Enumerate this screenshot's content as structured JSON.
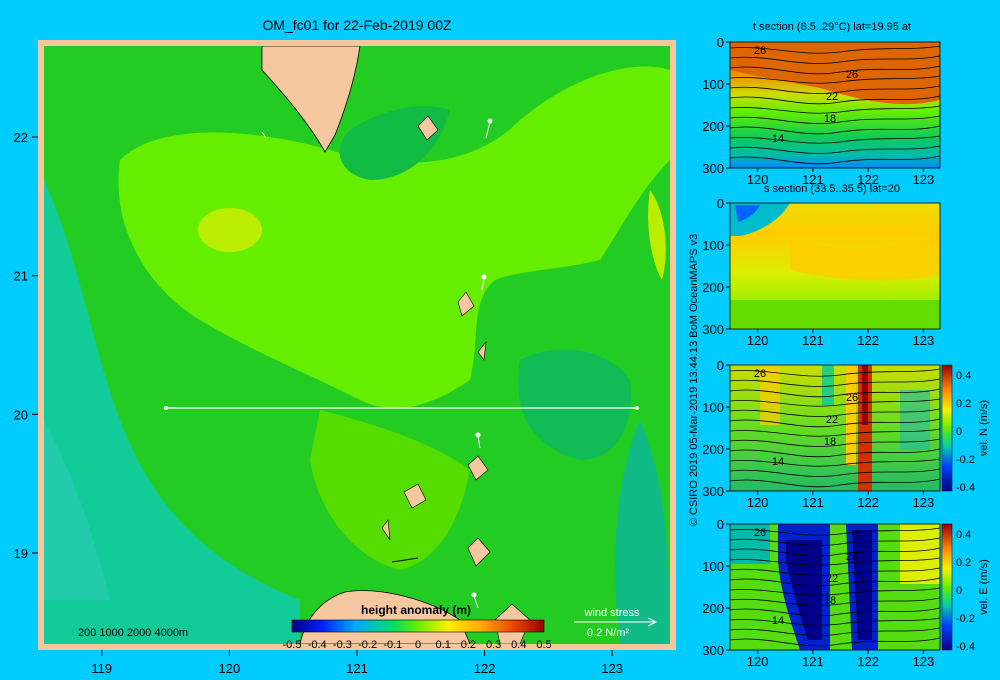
{
  "colors": {
    "background": "#00ccff",
    "frame": "#f5c79a",
    "land": "#f7c7a0",
    "green_light": "#66ee00",
    "green_mid": "#22cc22",
    "green_dark": "#11bb55",
    "teal": "#11cc99",
    "yellow_green": "#bbee00"
  },
  "chart_data": [
    {
      "type": "heatmap",
      "title": "OM_fc01 for 22-Feb-2019 00Z",
      "x_ticks": [
        "119",
        "120",
        "121",
        "122",
        "123"
      ],
      "y_ticks": [
        "19",
        "20",
        "21",
        "22"
      ],
      "xlim": [
        118.5,
        123.5
      ],
      "ylim": [
        18.3,
        22.7
      ],
      "section_line": {
        "lon": [
          119.5,
          123.2
        ],
        "lat": 20
      },
      "depth_legend": "200  1000  2000  4000m",
      "colorbar_title": "height anomaly (m)",
      "colorbar_ticks": [
        "-0.5",
        "-0.4",
        "-0.3",
        "-0.2",
        "-0.1",
        "0",
        "0.1",
        "0.2",
        "0.3",
        "0.4",
        "0.5"
      ],
      "colorbar_range": [
        -0.5,
        0.5
      ],
      "wind_stress_label": "wind stress",
      "wind_stress_scale": "0.2 N/m²"
    },
    {
      "type": "heatmap",
      "title": "t section (8.5..29°C) lat=19.95 at",
      "x_ticks": [
        "120",
        "121",
        "122",
        "123"
      ],
      "y_ticks": [
        "0",
        "100",
        "200",
        "300"
      ],
      "xlim": [
        119.5,
        123.3
      ],
      "ylim": [
        300,
        0
      ],
      "contour_labels": [
        "26",
        "26",
        "22",
        "18",
        "14"
      ]
    },
    {
      "type": "heatmap",
      "title": "s section (33.5..35.5) lat=20",
      "x_ticks": [
        "120",
        "121",
        "122",
        "123"
      ],
      "y_ticks": [
        "0",
        "100",
        "200",
        "300"
      ],
      "xlim": [
        119.5,
        123.3
      ],
      "ylim": [
        300,
        0
      ]
    },
    {
      "type": "heatmap",
      "title": "",
      "x_ticks": [
        "120",
        "121",
        "122",
        "123"
      ],
      "y_ticks": [
        "0",
        "100",
        "200",
        "300"
      ],
      "xlim": [
        119.5,
        123.3
      ],
      "ylim": [
        300,
        0
      ],
      "colorbar_label": "vel. N (m/s)",
      "colorbar_ticks": [
        "0.4",
        "0.2",
        "0",
        "-0.2",
        "-0.4"
      ],
      "contour_labels": [
        "26",
        "26",
        "22",
        "18",
        "14"
      ]
    },
    {
      "type": "heatmap",
      "title": "",
      "x_ticks": [
        "120",
        "121",
        "122",
        "123"
      ],
      "y_ticks": [
        "0",
        "100",
        "200",
        "300"
      ],
      "xlim": [
        119.5,
        123.3
      ],
      "ylim": [
        300,
        0
      ],
      "colorbar_label": "vel. E (m/s)",
      "colorbar_ticks": [
        "0.4",
        "0.2",
        "0",
        "-0.2",
        "-0.4"
      ],
      "contour_labels": [
        "26",
        "26",
        "22",
        "18",
        "14"
      ]
    }
  ],
  "credit": "© CSIRO 2019   05-Mar-2019 13:44:13 BoM OceanMAPS v3"
}
